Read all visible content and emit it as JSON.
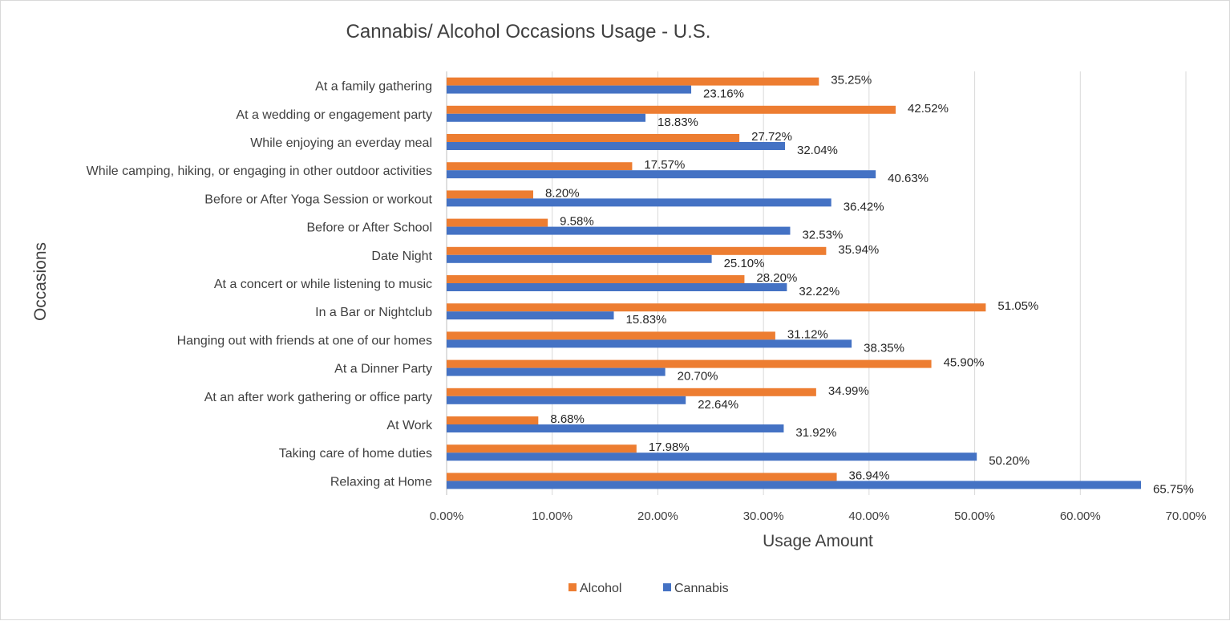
{
  "chart_data": {
    "type": "bar",
    "orientation": "horizontal",
    "title": "Cannabis/ Alcohol Occasions Usage - U.S.",
    "xlabel": "Usage Amount",
    "ylabel": "Occasions",
    "xlim": [
      0,
      70
    ],
    "x_ticks": [
      "0.00%",
      "10.00%",
      "20.00%",
      "30.00%",
      "40.00%",
      "50.00%",
      "60.00%",
      "70.00%"
    ],
    "grid": true,
    "legend_position": "bottom",
    "categories": [
      "At a family gathering",
      "At a wedding or engagement party",
      "While enjoying an everday meal",
      "While camping, hiking, or engaging in other outdoor activities",
      "Before or After Yoga Session or workout",
      "Before or After School",
      "Date Night",
      "At a concert or while listening to music",
      "In a Bar or Nightclub",
      "Hanging out with friends at one of our homes",
      "At a Dinner Party",
      "At an after work gathering or office party",
      "At Work",
      "Taking care of home duties",
      "Relaxing at Home"
    ],
    "series": [
      {
        "name": "Alcohol",
        "color": "#ED7D31",
        "values": [
          35.25,
          42.52,
          27.72,
          17.57,
          8.2,
          9.58,
          35.94,
          28.2,
          51.05,
          31.12,
          45.9,
          34.99,
          8.68,
          17.98,
          36.94
        ],
        "labels": [
          "35.25%",
          "42.52%",
          "27.72%",
          "17.57%",
          "8.20%",
          "9.58%",
          "35.94%",
          "28.20%",
          "51.05%",
          "31.12%",
          "45.90%",
          "34.99%",
          "8.68%",
          "17.98%",
          "36.94%"
        ]
      },
      {
        "name": "Cannabis",
        "color": "#4472C4",
        "values": [
          23.16,
          18.83,
          32.04,
          40.63,
          36.42,
          32.53,
          25.1,
          32.22,
          15.83,
          38.35,
          20.7,
          22.64,
          31.92,
          50.2,
          65.75
        ],
        "labels": [
          "23.16%",
          "18.83%",
          "32.04%",
          "40.63%",
          "36.42%",
          "32.53%",
          "25.10%",
          "32.22%",
          "15.83%",
          "38.35%",
          "20.70%",
          "22.64%",
          "31.92%",
          "50.20%",
          "65.75%"
        ]
      }
    ]
  }
}
